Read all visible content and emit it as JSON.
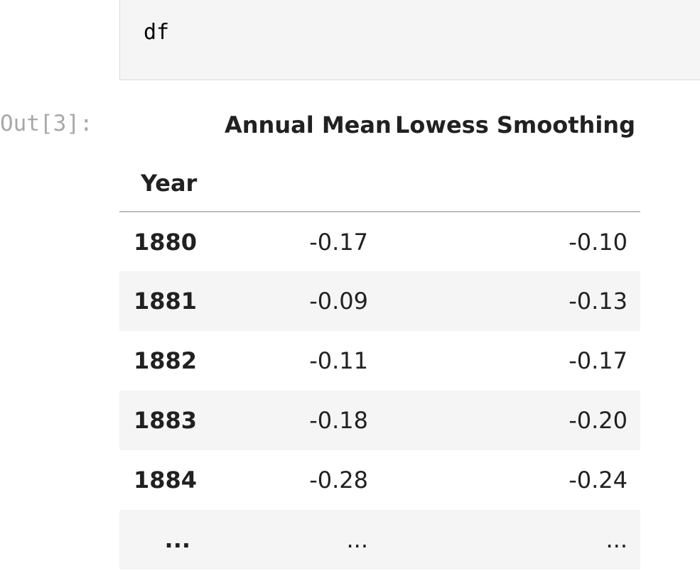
{
  "input_cell": {
    "code": "df"
  },
  "output_prompt": "Out[3]:",
  "dataframe": {
    "columns": [
      "Annual Mean",
      "Lowess Smoothing"
    ],
    "index_name": "Year",
    "rows": [
      {
        "index": "1880",
        "values": [
          "-0.17",
          "-0.10"
        ]
      },
      {
        "index": "1881",
        "values": [
          "-0.09",
          "-0.13"
        ]
      },
      {
        "index": "1882",
        "values": [
          "-0.11",
          "-0.17"
        ]
      },
      {
        "index": "1883",
        "values": [
          "-0.18",
          "-0.20"
        ]
      },
      {
        "index": "1884",
        "values": [
          "-0.28",
          "-0.24"
        ]
      },
      {
        "index": "...",
        "values": [
          "...",
          "..."
        ]
      }
    ]
  }
}
